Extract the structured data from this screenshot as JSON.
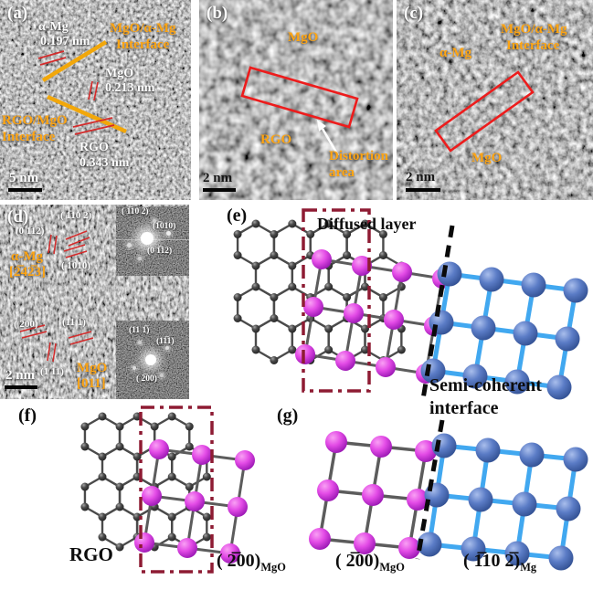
{
  "figure": {
    "description": "HRTEM micrographs and atomic interface models of RGO/MgO/α-Mg"
  },
  "colors": {
    "orange_label": "#FFA513",
    "yellow_line": "#F2A70A",
    "red_marker": "#D42B2B",
    "red_box": "#ED1C1C",
    "dark_red_box": "#8E1B33",
    "magenta_sphere": "#E34BE6",
    "blue_sphere": "#5B7CC6",
    "blue_bond": "#41A8F0",
    "gray_bond": "#5C5C5C",
    "carbon_atom": "#4A4A4A",
    "dashed_line": "#0A0A0A"
  },
  "panel_a": {
    "tag": "(a)",
    "alpha_mg": "α-Mg",
    "alpha_mg_spacing": "0.197 nm",
    "interface_top_1": "MgO/α-Mg",
    "interface_top_2": "Interface",
    "mgo": "MgO",
    "mgo_spacing": "0.213 nm",
    "interface_bottom_1": "RGO/MgO",
    "interface_bottom_2": "Interface",
    "rgo": "RGO",
    "rgo_spacing": "0.343 nm",
    "scale_bar": "5 nm"
  },
  "panel_b": {
    "tag": "(b)",
    "mgo": "MgO",
    "rgo": "RGO",
    "distortion_1": "Distortion",
    "distortion_2": "area",
    "scale_bar": "2 nm"
  },
  "panel_c": {
    "tag": "(c)",
    "interface_1": "MgO/α-Mg",
    "interface_2": "Interface",
    "alpha_mg": "α-Mg",
    "mgo": "MgO",
    "scale_bar": "2 nm"
  },
  "panel_d": {
    "tag": "(d)",
    "plane_1102": "( 1̅10 2̅)",
    "plane_0112": "(0 1̅12)",
    "zone_mg_1": "α-Mg",
    "zone_mg_2": "[2̅42̅3]",
    "plane_1010": "( 1̅010)",
    "plane_200": "( 2̅00)",
    "plane_11m1": "(11 1̅)",
    "plane_1m11": "(1 1̅1)",
    "zone_mgo_1": "MgO",
    "zone_mgo_2": "[011]",
    "scale_bar": "2 nm",
    "fft_top": {
      "spot1": "( 1̅10 2̅)",
      "spot2": "(1̅010)",
      "spot3": "(0 1̅12)"
    },
    "fft_bottom": {
      "spot1": "(11 1̅)",
      "spot2": "(11̅1)",
      "spot3": "( 2̅00)"
    }
  },
  "panel_e": {
    "tag": "(e)",
    "diffused_layer": "Diffused layer",
    "semi_coherent_1": "Semi-coherent",
    "semi_coherent_2": "interface"
  },
  "panel_f": {
    "tag": "(f)",
    "rgo": "RGO",
    "plane": "( 2̅00)",
    "plane_sub": "MgO"
  },
  "panel_g": {
    "tag": "(g)",
    "plane_left": "( 2̅00)",
    "plane_left_sub": "MgO",
    "plane_right": "( 1̅10 2̅)",
    "plane_right_sub": "Mg"
  }
}
